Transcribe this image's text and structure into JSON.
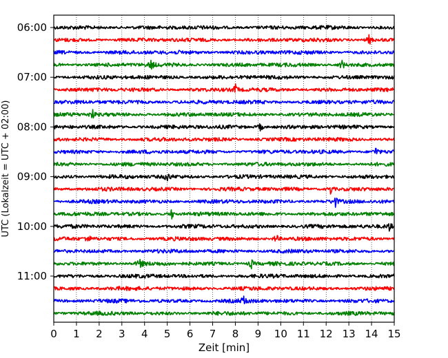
{
  "chart_data": {
    "type": "line",
    "xlabel": "Zeit  [min]",
    "ylabel": "UTC (Lokalzeit = UTC + 02:00)",
    "xlim": [
      0,
      15
    ],
    "x_ticks": [
      "0",
      "1",
      "2",
      "3",
      "4",
      "5",
      "6",
      "7",
      "8",
      "9",
      "10",
      "11",
      "12",
      "13",
      "14",
      "15"
    ],
    "y_ticks": [
      "06:00",
      "07:00",
      "08:00",
      "09:00",
      "10:00",
      "11:00"
    ],
    "grid": "vertical dotted",
    "trace_interval_min": 15,
    "colors": [
      "#000000",
      "#ff0000",
      "#0000ff",
      "#008000"
    ],
    "traces": [
      {
        "start": "06:00",
        "color": "#000000"
      },
      {
        "start": "06:15",
        "color": "#ff0000"
      },
      {
        "start": "06:30",
        "color": "#0000ff"
      },
      {
        "start": "06:45",
        "color": "#008000"
      },
      {
        "start": "07:00",
        "color": "#000000"
      },
      {
        "start": "07:15",
        "color": "#ff0000"
      },
      {
        "start": "07:30",
        "color": "#0000ff"
      },
      {
        "start": "07:45",
        "color": "#008000"
      },
      {
        "start": "08:00",
        "color": "#000000"
      },
      {
        "start": "08:15",
        "color": "#ff0000"
      },
      {
        "start": "08:30",
        "color": "#0000ff"
      },
      {
        "start": "08:45",
        "color": "#008000"
      },
      {
        "start": "09:00",
        "color": "#000000"
      },
      {
        "start": "09:15",
        "color": "#ff0000"
      },
      {
        "start": "09:30",
        "color": "#0000ff"
      },
      {
        "start": "09:45",
        "color": "#008000"
      },
      {
        "start": "10:00",
        "color": "#000000"
      },
      {
        "start": "10:15",
        "color": "#ff0000"
      },
      {
        "start": "10:30",
        "color": "#0000ff"
      },
      {
        "start": "10:45",
        "color": "#008000"
      },
      {
        "start": "11:00",
        "color": "#000000"
      },
      {
        "start": "11:15",
        "color": "#ff0000"
      },
      {
        "start": "11:30",
        "color": "#0000ff"
      },
      {
        "start": "11:45",
        "color": "#008000"
      }
    ],
    "events": [
      {
        "trace": "06:15",
        "x": 13.9
      },
      {
        "trace": "06:45",
        "x": 4.3
      },
      {
        "trace": "06:45",
        "x": 12.7
      },
      {
        "trace": "07:15",
        "x": 8.0
      },
      {
        "trace": "07:45",
        "x": 1.7
      },
      {
        "trace": "08:00",
        "x": 9.1
      },
      {
        "trace": "08:30",
        "x": 14.2
      },
      {
        "trace": "09:00",
        "x": 5.0
      },
      {
        "trace": "09:15",
        "x": 12.2
      },
      {
        "trace": "09:30",
        "x": 12.4
      },
      {
        "trace": "09:45",
        "x": 5.2
      },
      {
        "trace": "10:00",
        "x": 14.8
      },
      {
        "trace": "10:15",
        "x": 1.5
      },
      {
        "trace": "10:15",
        "x": 9.8
      },
      {
        "trace": "10:45",
        "x": 3.8
      },
      {
        "trace": "10:45",
        "x": 8.7
      },
      {
        "trace": "11:30",
        "x": 8.4
      }
    ]
  }
}
